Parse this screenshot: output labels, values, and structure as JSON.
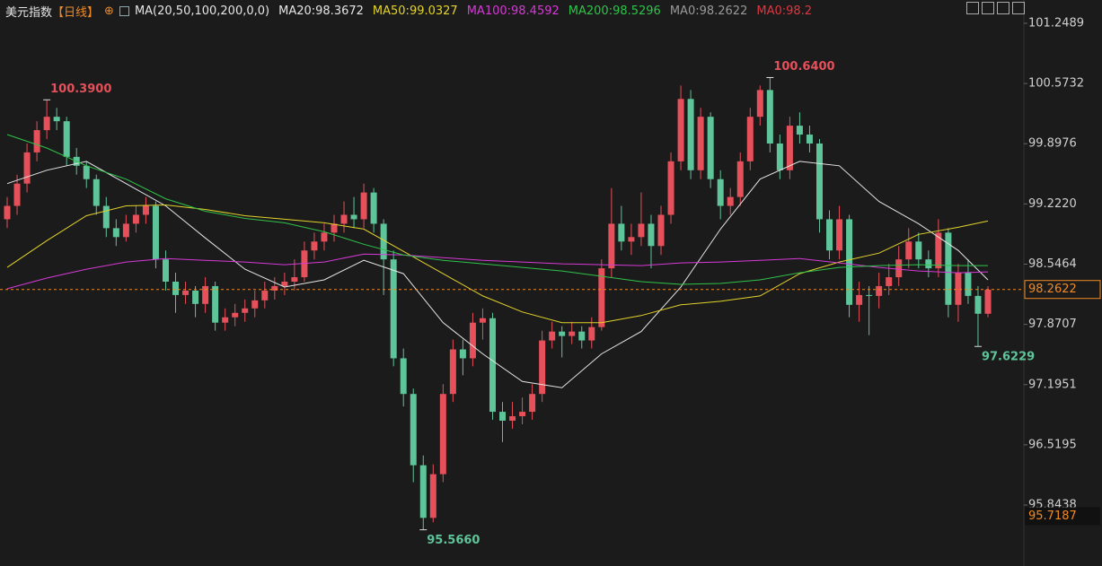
{
  "chart_data": {
    "type": "candlestick",
    "title": "美元指数",
    "period": "【日线】",
    "indicator": "MA(20,50,100,200,0,0)",
    "up_color": "#e5505a",
    "down_color": "#5ec49a",
    "ylim": [
      95.2,
      101.5
    ],
    "yticks": [
      101.2489,
      100.5732,
      99.8976,
      {
        "value": 99.222,
        "label": "99.2220"
      },
      98.5464,
      97.8707,
      97.1951,
      96.5195,
      95.8438
    ],
    "candles": [
      [
        99.05,
        99.3,
        98.95,
        99.2
      ],
      [
        99.2,
        99.55,
        99.1,
        99.45
      ],
      [
        99.45,
        99.9,
        99.35,
        99.8
      ],
      [
        99.8,
        100.15,
        99.7,
        100.05
      ],
      [
        100.05,
        100.39,
        99.95,
        100.2
      ],
      [
        100.2,
        100.3,
        100.05,
        100.15
      ],
      [
        100.15,
        100.2,
        99.65,
        99.75
      ],
      [
        99.75,
        99.85,
        99.55,
        99.65
      ],
      [
        99.65,
        99.7,
        99.4,
        99.5
      ],
      [
        99.5,
        99.55,
        99.1,
        99.2
      ],
      [
        99.2,
        99.3,
        98.85,
        98.95
      ],
      [
        98.95,
        99.05,
        98.75,
        98.85
      ],
      [
        98.85,
        99.1,
        98.8,
        99.0
      ],
      [
        99.0,
        99.2,
        98.9,
        99.1
      ],
      [
        99.1,
        99.3,
        99.0,
        99.2
      ],
      [
        99.2,
        99.25,
        98.5,
        98.6
      ],
      [
        98.6,
        98.7,
        98.25,
        98.35
      ],
      [
        98.35,
        98.45,
        98.0,
        98.2
      ],
      [
        98.2,
        98.35,
        98.1,
        98.25
      ],
      [
        98.25,
        98.3,
        97.95,
        98.1
      ],
      [
        98.1,
        98.4,
        98.0,
        98.3
      ],
      [
        98.3,
        98.35,
        97.8,
        97.89
      ],
      [
        97.89,
        98.05,
        97.8,
        97.95
      ],
      [
        97.95,
        98.1,
        97.85,
        98.0
      ],
      [
        98.0,
        98.15,
        97.9,
        98.05
      ],
      [
        98.05,
        98.25,
        97.95,
        98.14
      ],
      [
        98.14,
        98.35,
        98.05,
        98.25
      ],
      [
        98.25,
        98.4,
        98.15,
        98.3
      ],
      [
        98.3,
        98.45,
        98.2,
        98.35
      ],
      [
        98.35,
        98.6,
        98.25,
        98.4
      ],
      [
        98.4,
        98.8,
        98.35,
        98.7
      ],
      [
        98.7,
        98.9,
        98.6,
        98.8
      ],
      [
        98.8,
        99.0,
        98.7,
        98.9
      ],
      [
        98.9,
        99.1,
        98.8,
        99.0
      ],
      [
        99.0,
        99.25,
        98.9,
        99.1
      ],
      [
        99.1,
        99.3,
        98.95,
        99.05
      ],
      [
        99.05,
        99.45,
        98.95,
        99.35
      ],
      [
        99.35,
        99.4,
        98.9,
        99.0
      ],
      [
        99.0,
        99.05,
        98.2,
        98.6
      ],
      [
        98.6,
        98.7,
        97.4,
        97.49
      ],
      [
        97.49,
        97.6,
        96.95,
        97.09
      ],
      [
        97.09,
        97.15,
        96.1,
        96.29
      ],
      [
        96.29,
        96.4,
        95.566,
        95.7
      ],
      [
        95.7,
        96.3,
        95.65,
        96.19
      ],
      [
        96.19,
        97.2,
        96.1,
        97.09
      ],
      [
        97.09,
        97.7,
        97.0,
        97.59
      ],
      [
        97.59,
        97.7,
        97.3,
        97.49
      ],
      [
        97.49,
        98.0,
        97.4,
        97.89
      ],
      [
        97.89,
        98.05,
        97.7,
        97.94
      ],
      [
        97.94,
        98.0,
        96.8,
        96.89
      ],
      [
        96.89,
        97.0,
        96.55,
        96.79
      ],
      [
        96.79,
        97.0,
        96.7,
        96.84
      ],
      [
        96.84,
        97.05,
        96.75,
        96.89
      ],
      [
        96.89,
        97.2,
        96.8,
        97.09
      ],
      [
        97.09,
        97.8,
        97.0,
        97.69
      ],
      [
        97.69,
        97.9,
        97.6,
        97.79
      ],
      [
        97.79,
        97.85,
        97.5,
        97.74
      ],
      [
        97.74,
        97.9,
        97.65,
        97.79
      ],
      [
        97.79,
        97.85,
        97.6,
        97.69
      ],
      [
        97.69,
        97.95,
        97.6,
        97.84
      ],
      [
        97.84,
        98.6,
        97.8,
        98.5
      ],
      [
        98.5,
        99.4,
        98.4,
        99.0
      ],
      [
        99.0,
        99.2,
        98.7,
        98.8
      ],
      [
        98.8,
        99.0,
        98.65,
        98.85
      ],
      [
        98.85,
        99.35,
        98.75,
        99.0
      ],
      [
        99.0,
        99.1,
        98.5,
        98.75
      ],
      [
        98.75,
        99.2,
        98.65,
        99.1
      ],
      [
        99.1,
        99.8,
        99.0,
        99.7
      ],
      [
        99.7,
        100.55,
        99.6,
        100.4
      ],
      [
        100.4,
        100.5,
        99.5,
        99.6
      ],
      [
        99.6,
        100.3,
        99.5,
        100.2
      ],
      [
        100.2,
        100.25,
        99.4,
        99.5
      ],
      [
        99.5,
        99.6,
        99.05,
        99.2
      ],
      [
        99.2,
        99.4,
        99.1,
        99.3
      ],
      [
        99.3,
        99.8,
        99.2,
        99.7
      ],
      [
        99.7,
        100.3,
        99.6,
        100.2
      ],
      [
        100.2,
        100.55,
        100.1,
        100.5
      ],
      [
        100.5,
        100.64,
        99.8,
        99.9
      ],
      [
        99.9,
        100.0,
        99.5,
        99.6
      ],
      [
        99.6,
        100.2,
        99.5,
        100.1
      ],
      [
        100.1,
        100.25,
        99.9,
        100.0
      ],
      [
        100.0,
        100.1,
        99.8,
        99.9
      ],
      [
        99.9,
        99.95,
        98.9,
        99.05
      ],
      [
        99.05,
        99.15,
        98.6,
        98.7
      ],
      [
        98.7,
        99.2,
        98.6,
        99.05
      ],
      [
        99.05,
        99.1,
        97.95,
        98.09
      ],
      [
        98.09,
        98.35,
        97.9,
        98.2
      ],
      [
        98.2,
        98.3,
        97.75,
        98.19
      ],
      [
        98.19,
        98.45,
        98.05,
        98.3
      ],
      [
        98.3,
        98.55,
        98.2,
        98.4
      ],
      [
        98.4,
        98.75,
        98.3,
        98.6
      ],
      [
        98.6,
        98.95,
        98.5,
        98.8
      ],
      [
        98.8,
        98.9,
        98.5,
        98.6
      ],
      [
        98.6,
        98.7,
        98.4,
        98.5
      ],
      [
        98.5,
        99.05,
        98.4,
        98.9
      ],
      [
        98.9,
        98.95,
        97.95,
        98.09
      ],
      [
        98.09,
        98.55,
        97.9,
        98.45
      ],
      [
        98.45,
        98.6,
        98.1,
        98.19
      ],
      [
        98.19,
        98.3,
        97.6229,
        97.99
      ],
      [
        97.99,
        98.3,
        97.95,
        98.26
      ]
    ],
    "ma_x": [
      0,
      4,
      8,
      12,
      16,
      20,
      24,
      28,
      32,
      36,
      40,
      44,
      48,
      52,
      56,
      60,
      64,
      68,
      72,
      76,
      80,
      84,
      88,
      92,
      96,
      99
    ],
    "series": [
      {
        "name": "MA20:98.3672",
        "color": "#e6e6e6",
        "values": [
          99.45,
          99.6,
          99.7,
          99.45,
          99.2,
          98.84,
          98.49,
          98.29,
          98.37,
          98.59,
          98.44,
          97.89,
          97.54,
          97.23,
          97.16,
          97.54,
          97.79,
          98.29,
          98.94,
          99.5,
          99.7,
          99.65,
          99.25,
          99.0,
          98.7,
          98.37
        ]
      },
      {
        "name": "MA50:99.0327",
        "color": "#e3d32b",
        "values": [
          98.51,
          98.81,
          99.09,
          99.2,
          99.21,
          99.16,
          99.09,
          99.05,
          99.01,
          98.94,
          98.69,
          98.44,
          98.19,
          98.01,
          97.89,
          97.89,
          97.97,
          98.09,
          98.13,
          98.19,
          98.44,
          98.57,
          98.67,
          98.88,
          98.96,
          99.03
        ]
      },
      {
        "name": "MA100:98.4592",
        "color": "#d63ad6",
        "values": [
          98.27,
          98.39,
          98.49,
          98.57,
          98.61,
          98.59,
          98.57,
          98.54,
          98.57,
          98.66,
          98.65,
          98.62,
          98.59,
          98.57,
          98.55,
          98.54,
          98.53,
          98.56,
          98.57,
          98.59,
          98.61,
          98.56,
          98.51,
          98.47,
          98.45,
          98.46
        ]
      },
      {
        "name": "MA200:98.5296",
        "color": "#2fc34a",
        "values": [
          100.0,
          99.85,
          99.65,
          99.5,
          99.28,
          99.14,
          99.06,
          99.01,
          98.91,
          98.77,
          98.65,
          98.59,
          98.55,
          98.51,
          98.47,
          98.41,
          98.35,
          98.32,
          98.33,
          98.37,
          98.45,
          98.51,
          98.53,
          98.54,
          98.53,
          98.53
        ]
      }
    ],
    "legend_extra": [
      {
        "name": "MA0:98.2622",
        "color": "#9a9a9a"
      },
      {
        "name": "MA0:98.2",
        "color": "#e0363f"
      }
    ],
    "annotations": [
      {
        "value": 100.39,
        "label": "100.3900"
      },
      {
        "value": 100.64,
        "label": "100.6400"
      },
      {
        "value": 95.566,
        "label": "95.5660"
      },
      {
        "value": 97.6229,
        "label": "97.6229"
      }
    ],
    "last_price": {
      "value": 98.2622,
      "label": "98.2622",
      "color": "#f08a24"
    },
    "bottom_price": {
      "value": 95.7187,
      "label": "95.7187",
      "color": "#f08a24"
    }
  }
}
